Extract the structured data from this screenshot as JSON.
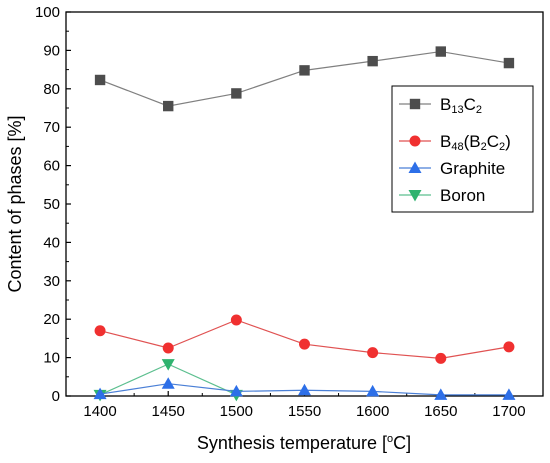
{
  "chart_data": {
    "type": "line",
    "xlabel": "Synthesis temperature [",
    "xlabel_degree": "o",
    "xlabel_unit": "C]",
    "ylabel": "Content of phases [%]",
    "xlim": [
      1375,
      1725
    ],
    "ylim": [
      0,
      100
    ],
    "x": [
      1400,
      1450,
      1500,
      1550,
      1600,
      1650,
      1700
    ],
    "x_ticks": [
      "1400",
      "1450",
      "1500",
      "1550",
      "1600",
      "1650",
      "1700"
    ],
    "y_ticks": [
      "0",
      "10",
      "20",
      "30",
      "40",
      "50",
      "60",
      "70",
      "80",
      "90",
      "100"
    ],
    "grid": false,
    "legend_position": "upper-right",
    "series": [
      {
        "name": "B13C2",
        "label_parts": [
          [
            "B",
            false
          ],
          [
            "13",
            true
          ],
          [
            "C",
            false
          ],
          [
            "2",
            true
          ]
        ],
        "marker": "square",
        "color": "#808080",
        "marker_color": "#4d4d4d",
        "values": [
          82.3,
          75.5,
          78.8,
          84.8,
          87.2,
          89.7,
          86.7
        ]
      },
      {
        "name": "B48(B2C2)",
        "label_parts": [
          [
            "B",
            false
          ],
          [
            "48",
            true
          ],
          [
            "(B",
            false
          ],
          [
            "2",
            true
          ],
          [
            "C",
            false
          ],
          [
            "2",
            true
          ],
          [
            ")",
            false
          ]
        ],
        "marker": "circle",
        "color": "#e05252",
        "marker_color": "#f03030",
        "values": [
          17.0,
          12.5,
          19.8,
          13.5,
          11.3,
          9.8,
          12.8
        ]
      },
      {
        "name": "Graphite",
        "label_parts": [
          [
            "Graphite",
            false
          ]
        ],
        "marker": "triangle-up",
        "color": "#4a7fd6",
        "marker_color": "#2d6fe8",
        "values": [
          0.5,
          3.2,
          1.2,
          1.5,
          1.2,
          0.3,
          0.3
        ]
      },
      {
        "name": "Boron",
        "label_parts": [
          [
            "Boron",
            false
          ]
        ],
        "marker": "triangle-down",
        "color": "#5cbf8f",
        "marker_color": "#2fb36f",
        "values": [
          0.3,
          8.3,
          0.3,
          null,
          null,
          null,
          null
        ]
      }
    ]
  }
}
